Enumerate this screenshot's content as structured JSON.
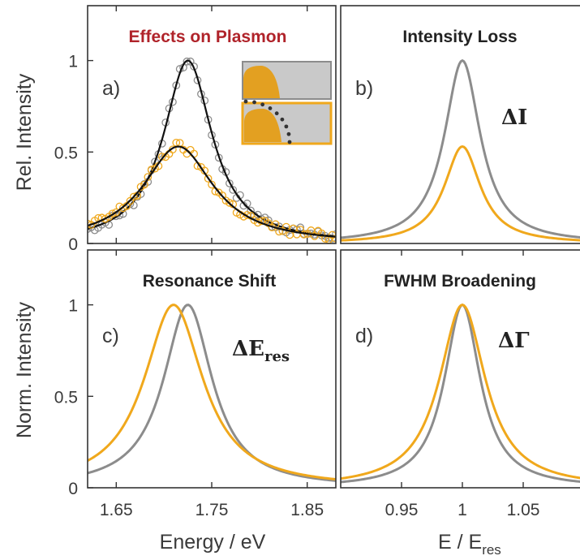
{
  "colors": {
    "gray": "#8c8c8c",
    "orange": "#f0a81c",
    "fit": "#111111",
    "title_red": "#b0232a"
  },
  "left_axis_labels": {
    "top": "Rel. Intensity",
    "bottom": "Norm. Intensity"
  },
  "bottom_axis_labels": {
    "left": "Energy / eV",
    "right_main": "E / E",
    "right_sub": "res"
  },
  "chart_data": [
    {
      "panel": "a",
      "type": "scatter",
      "label": "a)",
      "title": "Effects on Plasmon",
      "xlim": [
        1.62,
        1.88
      ],
      "ylim": [
        0,
        1.3
      ],
      "xticks": [
        1.65,
        1.75,
        1.85
      ],
      "yticks": [
        0,
        0.5,
        1
      ],
      "ytick_labels": [
        "0",
        "0.5",
        "1"
      ],
      "grid": false,
      "inset": "two small schematic images (gray and orange-framed) in top-right corner",
      "series": [
        {
          "color": "gray",
          "x0": 1.725,
          "gamma": 0.062,
          "amp": 1.0,
          "base": 0.0,
          "markers": true,
          "fit_line": true
        },
        {
          "color": "orange",
          "x0": 1.715,
          "gamma": 0.09,
          "amp": 0.53,
          "base": 0.0,
          "markers": true,
          "fit_line": true
        }
      ]
    },
    {
      "panel": "b",
      "type": "line",
      "label": "b)",
      "title": "Intensity Loss",
      "annotation": "ΔI",
      "xlim": [
        0.9,
        1.1
      ],
      "ylim": [
        0,
        1.3
      ],
      "grid": false,
      "series": [
        {
          "color": "gray",
          "x0": 1.0,
          "gamma": 0.036,
          "amp": 1.0,
          "base": 0.0
        },
        {
          "color": "orange",
          "x0": 1.0,
          "gamma": 0.036,
          "amp": 0.53,
          "base": 0.0
        }
      ]
    },
    {
      "panel": "c",
      "type": "line",
      "label": "c)",
      "title": "Resonance Shift",
      "annotation_main": "ΔE",
      "annotation_sub": "res",
      "xlim": [
        1.62,
        1.88
      ],
      "ylim": [
        0,
        1.3
      ],
      "xticks": [
        1.65,
        1.75,
        1.85
      ],
      "xtick_labels": [
        "1.65",
        "1.75",
        "1.85"
      ],
      "yticks": [
        0,
        0.5,
        1
      ],
      "ytick_labels": [
        "0",
        "0.5",
        "1"
      ],
      "grid": false,
      "series": [
        {
          "color": "gray",
          "x0": 1.725,
          "gamma": 0.062,
          "amp": 1.0,
          "base": 0.0
        },
        {
          "color": "orange",
          "x0": 1.71,
          "gamma": 0.075,
          "amp": 1.0,
          "base": 0.0
        }
      ]
    },
    {
      "panel": "d",
      "type": "line",
      "label": "d)",
      "title": "FWHM Broadening",
      "annotation": "ΔΓ",
      "xlim": [
        0.9,
        1.1
      ],
      "ylim": [
        0,
        1.3
      ],
      "xticks": [
        0.95,
        1.0,
        1.05
      ],
      "xtick_labels": [
        "0.95",
        "1",
        "1.05"
      ],
      "grid": false,
      "series": [
        {
          "color": "gray",
          "x0": 1.0,
          "gamma": 0.036,
          "amp": 1.0,
          "base": 0.0
        },
        {
          "color": "orange",
          "x0": 1.0,
          "gamma": 0.046,
          "amp": 1.0,
          "base": 0.0
        }
      ]
    }
  ]
}
